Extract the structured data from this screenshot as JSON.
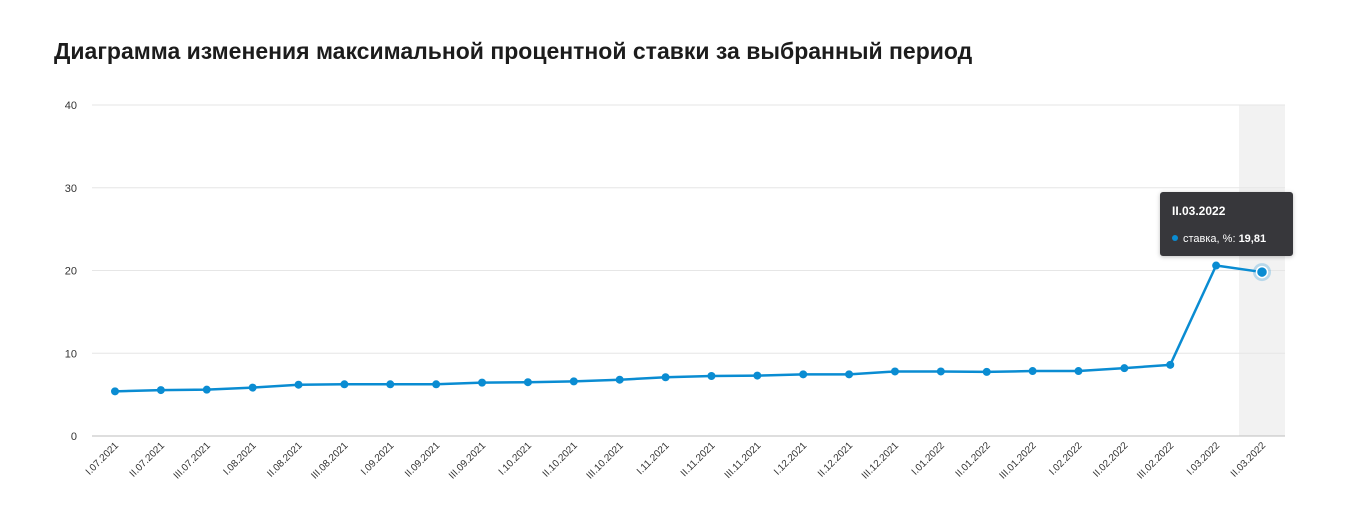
{
  "chart_data": {
    "type": "line",
    "title": "Диаграмма изменения максимальной процентной ставки за выбранный период",
    "categories": [
      "I.07.2021",
      "II.07.2021",
      "III.07.2021",
      "I.08.2021",
      "II.08.2021",
      "III.08.2021",
      "I.09.2021",
      "II.09.2021",
      "III.09.2021",
      "I.10.2021",
      "II.10.2021",
      "III.10.2021",
      "I.11.2021",
      "II.11.2021",
      "III.11.2021",
      "I.12.2021",
      "II.12.2021",
      "III.12.2021",
      "I.01.2022",
      "II.01.2022",
      "III.01.2022",
      "I.02.2022",
      "II.02.2022",
      "III.02.2022",
      "I.03.2022",
      "II.03.2022"
    ],
    "series": [
      {
        "name": "ставка, %",
        "color": "#0a8cd2",
        "values": [
          5.4,
          5.55,
          5.6,
          5.85,
          6.2,
          6.25,
          6.25,
          6.25,
          6.45,
          6.5,
          6.6,
          6.8,
          7.1,
          7.25,
          7.3,
          7.45,
          7.45,
          7.8,
          7.8,
          7.75,
          7.85,
          7.85,
          8.2,
          8.6,
          20.6,
          19.81
        ]
      }
    ],
    "ylim": [
      0,
      40
    ],
    "yticks": [
      0,
      10,
      20,
      30,
      40
    ],
    "grid": true,
    "highlight_index": 25
  },
  "tooltip": {
    "title": "II.03.2022",
    "label": "ставка, %:",
    "value": "19,81"
  }
}
